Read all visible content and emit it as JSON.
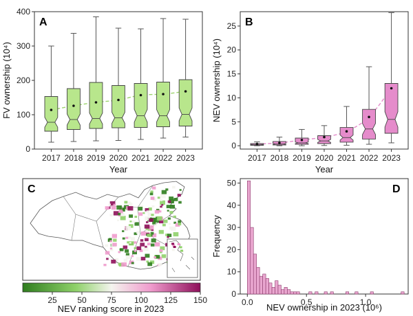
{
  "colors": {
    "fv_box": "#b8e68c",
    "nev_box": "#e58ccb",
    "fv_trend": "#9bd36b",
    "nev_trend": "#e58ccb",
    "hist_bar": "#e9a6cf",
    "colorbar": [
      "#2f7d1e",
      "#8fd16a",
      "#f4f4ee",
      "#f09ccd",
      "#8e0f5a"
    ]
  },
  "chart_data": [
    {
      "panel": "A",
      "type": "box",
      "categories": [
        "2017",
        "2018",
        "2019",
        "2020",
        "2021",
        "2022",
        "2023"
      ],
      "xlabel": "Year",
      "ylabel": "FV ownership (10⁴)",
      "ylim": [
        0,
        400
      ],
      "yticks": [
        "0",
        "100",
        "200",
        "300",
        "400"
      ],
      "boxes": [
        {
          "low": 20,
          "q1": 52,
          "median": 78,
          "q3": 153,
          "high": 300,
          "mean": 114
        },
        {
          "low": 22,
          "q1": 57,
          "median": 86,
          "q3": 176,
          "high": 337,
          "mean": 126
        },
        {
          "low": 24,
          "q1": 60,
          "median": 89,
          "q3": 194,
          "high": 385,
          "mean": 136
        },
        {
          "low": 25,
          "q1": 62,
          "median": 91,
          "q3": 185,
          "high": 352,
          "mean": 143
        },
        {
          "low": 28,
          "q1": 63,
          "median": 97,
          "q3": 191,
          "high": 350,
          "mean": 157
        },
        {
          "low": 32,
          "q1": 65,
          "median": 97,
          "q3": 195,
          "high": 380,
          "mean": 160
        },
        {
          "low": 35,
          "q1": 67,
          "median": 101,
          "q3": 202,
          "high": 378,
          "mean": 168
        }
      ]
    },
    {
      "panel": "B",
      "type": "box",
      "categories": [
        "2017",
        "2018",
        "2019",
        "2020",
        "2021",
        "2022",
        "2023"
      ],
      "xlabel": "Year",
      "ylabel": "NEV ownership (10⁴)",
      "ylim": [
        -0.7,
        28
      ],
      "yticks": [
        "0",
        "5",
        "10",
        "15",
        "20",
        "25"
      ],
      "boxes": [
        {
          "low": 0.0,
          "q1": 0.08,
          "median": 0.2,
          "q3": 0.45,
          "high": 0.8,
          "mean": 0.35
        },
        {
          "low": 0.0,
          "q1": 0.15,
          "median": 0.35,
          "q3": 0.9,
          "high": 1.8,
          "mean": 0.6
        },
        {
          "low": 0.0,
          "q1": 0.3,
          "median": 0.6,
          "q3": 1.6,
          "high": 3.4,
          "mean": 1.2
        },
        {
          "low": 0.05,
          "q1": 0.45,
          "median": 1.0,
          "q3": 2.1,
          "high": 4.2,
          "mean": 1.8
        },
        {
          "low": 0.1,
          "q1": 0.75,
          "median": 1.7,
          "q3": 3.8,
          "high": 8.2,
          "mean": 3.0
        },
        {
          "low": 0.3,
          "q1": 1.4,
          "median": 3.5,
          "q3": 7.6,
          "high": 16.5,
          "mean": 6.0
        },
        {
          "low": 0.6,
          "q1": 2.6,
          "median": 5.5,
          "q3": 13.0,
          "high": 27.8,
          "mean": 12.0
        }
      ]
    },
    {
      "panel": "C",
      "type": "heatmap",
      "colorbar_label": "NEV ranking score in 2023",
      "colorbar_ticks": [
        "25",
        "50",
        "75",
        "100",
        "125",
        "150"
      ],
      "colorbar_range": [
        0,
        150
      ]
    },
    {
      "panel": "D",
      "type": "bar",
      "xlabel": "NEV ownership in 2023  (10⁶)",
      "ylabel": "Frequency",
      "xlim": [
        -0.06,
        1.36
      ],
      "ylim": [
        0,
        52
      ],
      "xticks": [
        "0.0",
        "0.5",
        "1.0"
      ],
      "yticks": [
        "0",
        "10",
        "20",
        "30",
        "40",
        "50"
      ],
      "bin_width": 0.026,
      "bin_starts": [
        0.0,
        0.026,
        0.052,
        0.078,
        0.104,
        0.13,
        0.156,
        0.182,
        0.208,
        0.234,
        0.26,
        0.286,
        0.312,
        0.338,
        0.364,
        0.39,
        0.416,
        0.52,
        0.572,
        0.65,
        0.702,
        0.832,
        0.91,
        1.04,
        1.3
      ],
      "values": [
        51,
        30,
        18,
        12,
        8,
        9,
        7,
        5,
        3,
        6,
        4,
        2,
        3,
        2,
        1,
        1,
        1,
        1,
        1,
        1,
        1,
        1,
        1,
        1,
        1
      ]
    }
  ]
}
